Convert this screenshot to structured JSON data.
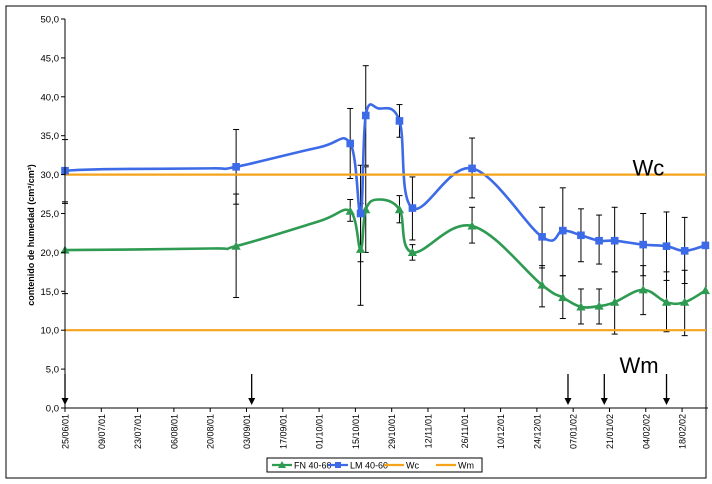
{
  "chart_data": {
    "type": "line",
    "title": "",
    "xlabel": "",
    "ylabel": "contenido de humedad (cm³/cm³)",
    "ylim": [
      0,
      50
    ],
    "grid": false,
    "legend_placement": "bottom",
    "y_ticks": [
      "0,0",
      "5,0",
      "10,0",
      "15,0",
      "20,0",
      "25,0",
      "30,0",
      "35,0",
      "40,0",
      "45,0",
      "50,0"
    ],
    "x_ticks": [
      "25/06/01",
      "09/07/01",
      "23/07/01",
      "06/08/01",
      "20/08/01",
      "03/09/01",
      "17/09/01",
      "01/10/01",
      "15/10/01",
      "29/10/01",
      "12/11/01",
      "26/11/01",
      "10/12/01",
      "24/12/01",
      "07/01/02",
      "21/01/02",
      "04/02/02",
      "18/02/02"
    ],
    "x_range": [
      "2001-06-25",
      "2002-02-28"
    ],
    "annotations": [
      {
        "text": "Wc",
        "x": "2002-02-12",
        "y": 31.2
      },
      {
        "text": "Wm",
        "x": "2002-02-07",
        "y": 5.8
      }
    ],
    "arrows_at": [
      "2001-06-25",
      "2001-09-05",
      "2002-01-05",
      "2002-01-19",
      "2002-02-12"
    ],
    "series": [
      {
        "name": "FN 40-60",
        "color": "#2e9a52",
        "marker": "triangle",
        "points": [
          {
            "x": "2001-06-25",
            "y": 20.3,
            "lo": 14.7,
            "hi": 26.3
          },
          {
            "x": "2001-08-20",
            "y": 20.5
          },
          {
            "x": "2001-08-30",
            "y": 20.8,
            "lo": 14.2,
            "hi": 27.5
          },
          {
            "x": "2001-10-01",
            "y": 24.0
          },
          {
            "x": "2001-10-13",
            "y": 25.3,
            "lo": 24.0,
            "hi": 26.8
          },
          {
            "x": "2001-10-17",
            "y": 20.4,
            "lo": 13.2,
            "hi": 26.3
          },
          {
            "x": "2001-10-19",
            "y": 25.5,
            "lo": 20.0,
            "hi": 31.0
          },
          {
            "x": "2001-10-24",
            "y": 26.8
          },
          {
            "x": "2001-11-01",
            "y": 25.5,
            "lo": 23.8,
            "hi": 27.3
          },
          {
            "x": "2001-11-06",
            "y": 20.0,
            "lo": 19.0,
            "hi": 21.0
          },
          {
            "x": "2001-11-29",
            "y": 23.4,
            "lo": 21.2,
            "hi": 25.8
          },
          {
            "x": "2001-12-26",
            "y": 15.8,
            "lo": 13.0,
            "hi": 18.3
          },
          {
            "x": "2002-01-03",
            "y": 14.2,
            "lo": 11.5,
            "hi": 17.0
          },
          {
            "x": "2002-01-10",
            "y": 13.0,
            "lo": 10.8,
            "hi": 15.3
          },
          {
            "x": "2002-01-17",
            "y": 13.1,
            "lo": 10.8,
            "hi": 15.3
          },
          {
            "x": "2002-01-23",
            "y": 13.6,
            "lo": 9.5,
            "hi": 17.5
          },
          {
            "x": "2002-02-03",
            "y": 15.2,
            "lo": 12.0,
            "hi": 18.3
          },
          {
            "x": "2002-02-12",
            "y": 13.6,
            "lo": 9.8,
            "hi": 17.5
          },
          {
            "x": "2002-02-19",
            "y": 13.6,
            "lo": 9.3,
            "hi": 17.7
          },
          {
            "x": "2002-02-27",
            "y": 15.1
          }
        ]
      },
      {
        "name": "LM 40-60",
        "color": "#3d6ae6",
        "marker": "square",
        "points": [
          {
            "x": "2001-06-25",
            "y": 30.5,
            "lo": 26.5,
            "hi": 34.5
          },
          {
            "x": "2001-07-10",
            "y": 30.7
          },
          {
            "x": "2001-08-20",
            "y": 30.8
          },
          {
            "x": "2001-08-30",
            "y": 31.0,
            "lo": 26.2,
            "hi": 35.8
          },
          {
            "x": "2001-10-01",
            "y": 33.5
          },
          {
            "x": "2001-10-13",
            "y": 34.0,
            "lo": 29.5,
            "hi": 38.5
          },
          {
            "x": "2001-10-17",
            "y": 25.0,
            "lo": 18.8,
            "hi": 31.2
          },
          {
            "x": "2001-10-19",
            "y": 37.6,
            "lo": 31.2,
            "hi": 44.0
          },
          {
            "x": "2001-10-24",
            "y": 38.5
          },
          {
            "x": "2001-11-01",
            "y": 36.9,
            "lo": 34.8,
            "hi": 39.0
          },
          {
            "x": "2001-11-06",
            "y": 25.7,
            "lo": 21.6,
            "hi": 29.7
          },
          {
            "x": "2001-11-29",
            "y": 30.8,
            "lo": 27.0,
            "hi": 34.7
          },
          {
            "x": "2001-12-26",
            "y": 22.0,
            "lo": 18.0,
            "hi": 25.8
          },
          {
            "x": "2002-01-03",
            "y": 22.8,
            "lo": 17.0,
            "hi": 28.3
          },
          {
            "x": "2002-01-10",
            "y": 22.2,
            "lo": 18.8,
            "hi": 25.6
          },
          {
            "x": "2002-01-17",
            "y": 21.5,
            "lo": 18.5,
            "hi": 24.8
          },
          {
            "x": "2002-01-23",
            "y": 21.5,
            "lo": 17.5,
            "hi": 25.8
          },
          {
            "x": "2002-02-03",
            "y": 21.0,
            "lo": 17.0,
            "hi": 25.0
          },
          {
            "x": "2002-02-12",
            "y": 20.8,
            "lo": 16.4,
            "hi": 25.2
          },
          {
            "x": "2002-02-19",
            "y": 20.2,
            "lo": 16.0,
            "hi": 24.5
          },
          {
            "x": "2002-02-27",
            "y": 20.9
          }
        ]
      },
      {
        "name": "Wc",
        "color": "#f5a31a",
        "marker": "none",
        "constant": 30.0
      },
      {
        "name": "Wm",
        "color": "#f5a31a",
        "marker": "none",
        "constant": 10.0
      }
    ]
  }
}
